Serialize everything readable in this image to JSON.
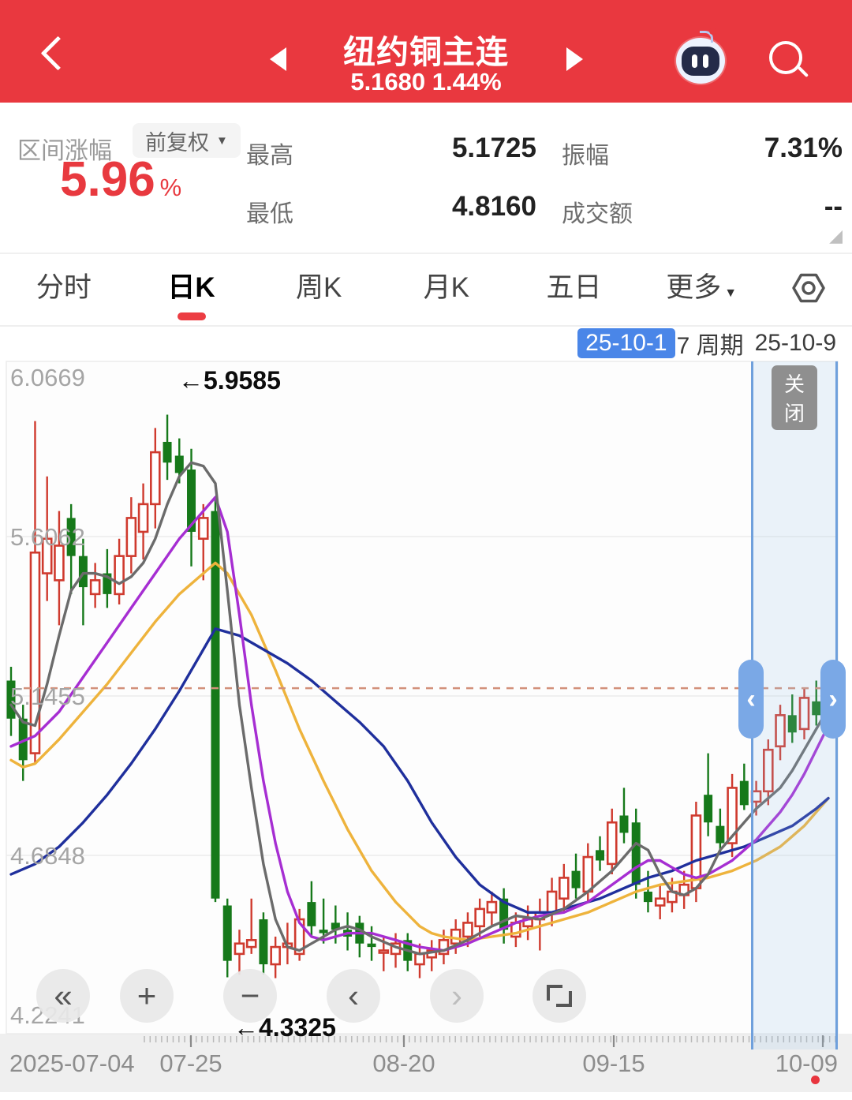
{
  "header": {
    "title": "纽约铜主连",
    "price_line": "5.1680 1.44%",
    "back_icon": "chevron-left-icon",
    "prev_icon": "triangle-left-icon",
    "next_icon": "triangle-right-icon",
    "assistant_icon": "robot-icon",
    "search_icon": "search-icon",
    "bg_color": "#e9383f"
  },
  "stats": {
    "range_label": "区间涨幅",
    "adjust_label": "前复权",
    "range_value": "5.96",
    "range_unit": "%",
    "high_label": "最高",
    "high_value": "5.1725",
    "amp_label": "振幅",
    "amp_value": "7.31%",
    "low_label": "最低",
    "low_value": "4.8160",
    "turnover_label": "成交额",
    "turnover_value": "--",
    "accent_color": "#e8393f"
  },
  "tabs": {
    "items": [
      {
        "label": "分时",
        "active": false
      },
      {
        "label": "日K",
        "active": true
      },
      {
        "label": "周K",
        "active": false
      },
      {
        "label": "月K",
        "active": false
      },
      {
        "label": "五日",
        "active": false
      },
      {
        "label": "更多",
        "active": false,
        "has_caret": true
      }
    ],
    "settings_icon": "settings-hexagon-icon",
    "active_color": "#ec3d43"
  },
  "period": {
    "start": "25-10-1",
    "middle": "7 周期",
    "end": "25-10-9",
    "chip_color": "#4a86e8"
  },
  "chart": {
    "close_button": "关闭",
    "y_axis_labels": [
      "6.0669",
      "5.6062",
      "5.1455",
      "4.6848",
      "4.2241"
    ],
    "annotations": {
      "high": "←5.9585",
      "low": "←4.3325"
    },
    "current_price": 5.168,
    "x_axis": {
      "labels": [
        "2025-07-04",
        "07-25",
        "08-20",
        "09-15",
        "10-09"
      ],
      "last_has_red_dot": true
    },
    "colors": {
      "up": "#cf3a2e",
      "down": "#16791a",
      "ma5": "#6b6b6b",
      "ma10": "#a62ed2",
      "ma20": "#eeb33c",
      "ma30": "#1f2f9c",
      "price_dash": "#d2907a",
      "grid": "#ececec",
      "selection_border": "#6fa0dc",
      "handle": "#7aa8e6"
    },
    "chart_data": {
      "type": "candlestick",
      "title": "纽约铜主连 日K",
      "ylim": [
        4.2241,
        6.0669
      ],
      "high_point": 5.9585,
      "low_point": 4.3325,
      "candles_ohlc": [
        [
          5.19,
          5.23,
          5.03,
          5.08
        ],
        [
          5.08,
          5.12,
          4.9,
          4.96
        ],
        [
          4.98,
          5.94,
          4.95,
          5.56
        ],
        [
          5.5,
          5.78,
          5.42,
          5.6
        ],
        [
          5.48,
          5.68,
          5.35,
          5.58
        ],
        [
          5.66,
          5.7,
          5.44,
          5.55
        ],
        [
          5.55,
          5.6,
          5.35,
          5.46
        ],
        [
          5.44,
          5.53,
          5.4,
          5.48
        ],
        [
          5.5,
          5.57,
          5.4,
          5.44
        ],
        [
          5.44,
          5.6,
          5.41,
          5.55
        ],
        [
          5.55,
          5.72,
          5.5,
          5.66
        ],
        [
          5.62,
          5.76,
          5.54,
          5.7
        ],
        [
          5.7,
          5.92,
          5.63,
          5.85
        ],
        [
          5.88,
          5.9585,
          5.77,
          5.82
        ],
        [
          5.84,
          5.89,
          5.76,
          5.79
        ],
        [
          5.8,
          5.86,
          5.52,
          5.62
        ],
        [
          5.6,
          5.7,
          5.48,
          5.66
        ],
        [
          5.68,
          5.72,
          4.55,
          4.56
        ],
        [
          4.54,
          4.56,
          4.3325,
          4.38
        ],
        [
          4.4,
          4.47,
          4.34,
          4.43
        ],
        [
          4.42,
          4.56,
          4.4,
          4.44
        ],
        [
          4.5,
          4.52,
          4.34,
          4.37
        ],
        [
          4.37,
          4.45,
          4.33,
          4.42
        ],
        [
          4.42,
          4.49,
          4.37,
          4.43
        ],
        [
          4.4,
          4.53,
          4.38,
          4.5
        ],
        [
          4.55,
          4.61,
          4.45,
          4.48
        ],
        [
          4.47,
          4.56,
          4.43,
          4.46
        ],
        [
          4.49,
          4.54,
          4.43,
          4.47
        ],
        [
          4.47,
          4.52,
          4.41,
          4.45
        ],
        [
          4.49,
          4.51,
          4.39,
          4.43
        ],
        [
          4.43,
          4.48,
          4.38,
          4.42
        ],
        [
          4.41,
          4.45,
          4.35,
          4.41
        ],
        [
          4.4,
          4.46,
          4.36,
          4.43
        ],
        [
          4.44,
          4.46,
          4.35,
          4.38
        ],
        [
          4.37,
          4.43,
          4.33,
          4.4
        ],
        [
          4.39,
          4.44,
          4.35,
          4.41
        ],
        [
          4.4,
          4.47,
          4.37,
          4.44
        ],
        [
          4.43,
          4.5,
          4.4,
          4.47
        ],
        [
          4.45,
          4.52,
          4.42,
          4.49
        ],
        [
          4.48,
          4.56,
          4.45,
          4.53
        ],
        [
          4.52,
          4.58,
          4.48,
          4.55
        ],
        [
          4.56,
          4.59,
          4.43,
          4.47
        ],
        [
          4.45,
          4.52,
          4.42,
          4.49
        ],
        [
          4.48,
          4.54,
          4.44,
          4.5
        ],
        [
          4.5,
          4.56,
          4.41,
          4.52
        ],
        [
          4.52,
          4.62,
          4.48,
          4.58
        ],
        [
          4.56,
          4.66,
          4.52,
          4.62
        ],
        [
          4.64,
          4.69,
          4.56,
          4.59
        ],
        [
          4.58,
          4.72,
          4.55,
          4.68
        ],
        [
          4.7,
          4.74,
          4.64,
          4.67
        ],
        [
          4.66,
          4.82,
          4.63,
          4.78
        ],
        [
          4.8,
          4.88,
          4.72,
          4.75
        ],
        [
          4.78,
          4.82,
          4.56,
          4.6
        ],
        [
          4.58,
          4.64,
          4.52,
          4.55
        ],
        [
          4.54,
          4.6,
          4.5,
          4.56
        ],
        [
          4.55,
          4.62,
          4.52,
          4.58
        ],
        [
          4.57,
          4.64,
          4.53,
          4.6
        ],
        [
          4.59,
          4.84,
          4.55,
          4.8
        ],
        [
          4.86,
          4.98,
          4.74,
          4.78
        ],
        [
          4.77,
          4.82,
          4.69,
          4.72
        ],
        [
          4.72,
          4.92,
          4.68,
          4.88
        ],
        [
          4.9,
          4.95,
          4.816,
          4.83
        ],
        [
          4.84,
          4.9,
          4.8,
          4.87
        ],
        [
          4.87,
          5.02,
          4.83,
          4.99
        ],
        [
          5.0,
          5.12,
          4.96,
          5.09
        ],
        [
          5.09,
          5.15,
          5.01,
          5.04
        ],
        [
          5.05,
          5.17,
          5.02,
          5.14
        ],
        [
          5.13,
          5.19,
          5.06,
          5.09
        ],
        [
          5.08,
          5.1725,
          5.04,
          5.168
        ]
      ],
      "ma5": [
        [
          0,
          5.12
        ],
        [
          1,
          5.07
        ],
        [
          2,
          5.06
        ],
        [
          3,
          5.18
        ],
        [
          4,
          5.32
        ],
        [
          5,
          5.45
        ],
        [
          6,
          5.5
        ],
        [
          7,
          5.5
        ],
        [
          8,
          5.49
        ],
        [
          9,
          5.47
        ],
        [
          10,
          5.49
        ],
        [
          11,
          5.53
        ],
        [
          12,
          5.6
        ],
        [
          13,
          5.7
        ],
        [
          14,
          5.78
        ],
        [
          15,
          5.82
        ],
        [
          16,
          5.81
        ],
        [
          17,
          5.76
        ],
        [
          18,
          5.45
        ],
        [
          19,
          5.12
        ],
        [
          20,
          4.88
        ],
        [
          21,
          4.66
        ],
        [
          22,
          4.5
        ],
        [
          23,
          4.42
        ],
        [
          24,
          4.41
        ],
        [
          25,
          4.43
        ],
        [
          26,
          4.45
        ],
        [
          27,
          4.47
        ],
        [
          28,
          4.48
        ],
        [
          29,
          4.47
        ],
        [
          30,
          4.45
        ],
        [
          32,
          4.42
        ],
        [
          34,
          4.4
        ],
        [
          36,
          4.41
        ],
        [
          38,
          4.44
        ],
        [
          40,
          4.48
        ],
        [
          42,
          4.51
        ],
        [
          44,
          4.5
        ],
        [
          46,
          4.53
        ],
        [
          48,
          4.58
        ],
        [
          50,
          4.64
        ],
        [
          51,
          4.68
        ],
        [
          52,
          4.72
        ],
        [
          53,
          4.7
        ],
        [
          54,
          4.63
        ],
        [
          55,
          4.58
        ],
        [
          56,
          4.57
        ],
        [
          57,
          4.59
        ],
        [
          58,
          4.63
        ],
        [
          59,
          4.7
        ],
        [
          60,
          4.74
        ],
        [
          61,
          4.78
        ],
        [
          62,
          4.82
        ],
        [
          63,
          4.85
        ],
        [
          64,
          4.88
        ],
        [
          65,
          4.93
        ],
        [
          66,
          4.99
        ],
        [
          67,
          5.05
        ],
        [
          68,
          5.11
        ]
      ],
      "ma10": [
        [
          0,
          5.0
        ],
        [
          2,
          5.03
        ],
        [
          4,
          5.1
        ],
        [
          6,
          5.2
        ],
        [
          8,
          5.3
        ],
        [
          10,
          5.4
        ],
        [
          12,
          5.5
        ],
        [
          14,
          5.6
        ],
        [
          16,
          5.68
        ],
        [
          17,
          5.72
        ],
        [
          18,
          5.62
        ],
        [
          19,
          5.38
        ],
        [
          20,
          5.12
        ],
        [
          21,
          4.9
        ],
        [
          22,
          4.72
        ],
        [
          23,
          4.58
        ],
        [
          24,
          4.49
        ],
        [
          25,
          4.45
        ],
        [
          26,
          4.44
        ],
        [
          28,
          4.46
        ],
        [
          30,
          4.46
        ],
        [
          32,
          4.44
        ],
        [
          34,
          4.42
        ],
        [
          36,
          4.41
        ],
        [
          38,
          4.43
        ],
        [
          40,
          4.46
        ],
        [
          42,
          4.49
        ],
        [
          44,
          4.51
        ],
        [
          46,
          4.52
        ],
        [
          48,
          4.55
        ],
        [
          50,
          4.6
        ],
        [
          52,
          4.65
        ],
        [
          53,
          4.67
        ],
        [
          54,
          4.67
        ],
        [
          55,
          4.65
        ],
        [
          56,
          4.63
        ],
        [
          57,
          4.62
        ],
        [
          58,
          4.63
        ],
        [
          59,
          4.65
        ],
        [
          60,
          4.67
        ],
        [
          61,
          4.7
        ],
        [
          62,
          4.73
        ],
        [
          63,
          4.77
        ],
        [
          64,
          4.81
        ],
        [
          65,
          4.86
        ],
        [
          66,
          4.92
        ],
        [
          67,
          4.99
        ],
        [
          68,
          5.06
        ]
      ],
      "ma20": [
        [
          0,
          4.96
        ],
        [
          1,
          4.94
        ],
        [
          2,
          4.95
        ],
        [
          4,
          5.02
        ],
        [
          6,
          5.1
        ],
        [
          8,
          5.18
        ],
        [
          10,
          5.27
        ],
        [
          12,
          5.36
        ],
        [
          14,
          5.44
        ],
        [
          16,
          5.5
        ],
        [
          17,
          5.53
        ],
        [
          18,
          5.5
        ],
        [
          20,
          5.38
        ],
        [
          22,
          5.22
        ],
        [
          24,
          5.05
        ],
        [
          26,
          4.9
        ],
        [
          28,
          4.76
        ],
        [
          30,
          4.64
        ],
        [
          32,
          4.55
        ],
        [
          34,
          4.48
        ],
        [
          35,
          4.46
        ],
        [
          36,
          4.45
        ],
        [
          38,
          4.44
        ],
        [
          40,
          4.45
        ],
        [
          42,
          4.46
        ],
        [
          44,
          4.48
        ],
        [
          46,
          4.5
        ],
        [
          48,
          4.52
        ],
        [
          50,
          4.55
        ],
        [
          52,
          4.58
        ],
        [
          54,
          4.6
        ],
        [
          56,
          4.61
        ],
        [
          58,
          4.62
        ],
        [
          60,
          4.64
        ],
        [
          62,
          4.67
        ],
        [
          64,
          4.71
        ],
        [
          65,
          4.74
        ],
        [
          66,
          4.77
        ],
        [
          67,
          4.81
        ],
        [
          68,
          4.85
        ]
      ],
      "ma30": [
        [
          0,
          4.63
        ],
        [
          2,
          4.66
        ],
        [
          4,
          4.71
        ],
        [
          6,
          4.78
        ],
        [
          8,
          4.86
        ],
        [
          10,
          4.95
        ],
        [
          12,
          5.05
        ],
        [
          14,
          5.16
        ],
        [
          16,
          5.28
        ],
        [
          17,
          5.34
        ],
        [
          19,
          5.32
        ],
        [
          21,
          5.28
        ],
        [
          23,
          5.24
        ],
        [
          25,
          5.19
        ],
        [
          27,
          5.13
        ],
        [
          29,
          5.07
        ],
        [
          31,
          5.0
        ],
        [
          33,
          4.9
        ],
        [
          35,
          4.78
        ],
        [
          37,
          4.68
        ],
        [
          39,
          4.6
        ],
        [
          41,
          4.55
        ],
        [
          43,
          4.52
        ],
        [
          45,
          4.52
        ],
        [
          47,
          4.54
        ],
        [
          49,
          4.56
        ],
        [
          51,
          4.59
        ],
        [
          53,
          4.62
        ],
        [
          55,
          4.64
        ],
        [
          57,
          4.67
        ],
        [
          59,
          4.69
        ],
        [
          61,
          4.71
        ],
        [
          63,
          4.74
        ],
        [
          65,
          4.77
        ],
        [
          67,
          4.82
        ],
        [
          68,
          4.85
        ]
      ]
    }
  },
  "toolbar": {
    "buttons": [
      {
        "name": "rewind-button",
        "icon": "double-chevron-left-icon",
        "glyph": "«"
      },
      {
        "name": "zoom-in-button",
        "icon": "plus-icon",
        "glyph": "+"
      },
      {
        "name": "zoom-out-button",
        "icon": "minus-icon",
        "glyph": "−"
      },
      {
        "name": "pan-left-button",
        "icon": "chevron-left-icon",
        "glyph": "‹"
      },
      {
        "name": "pan-right-button",
        "icon": "chevron-right-icon",
        "glyph": "›",
        "disabled": true
      },
      {
        "name": "fullscreen-button",
        "icon": "fullscreen-corners-icon",
        "glyph": ""
      }
    ]
  }
}
